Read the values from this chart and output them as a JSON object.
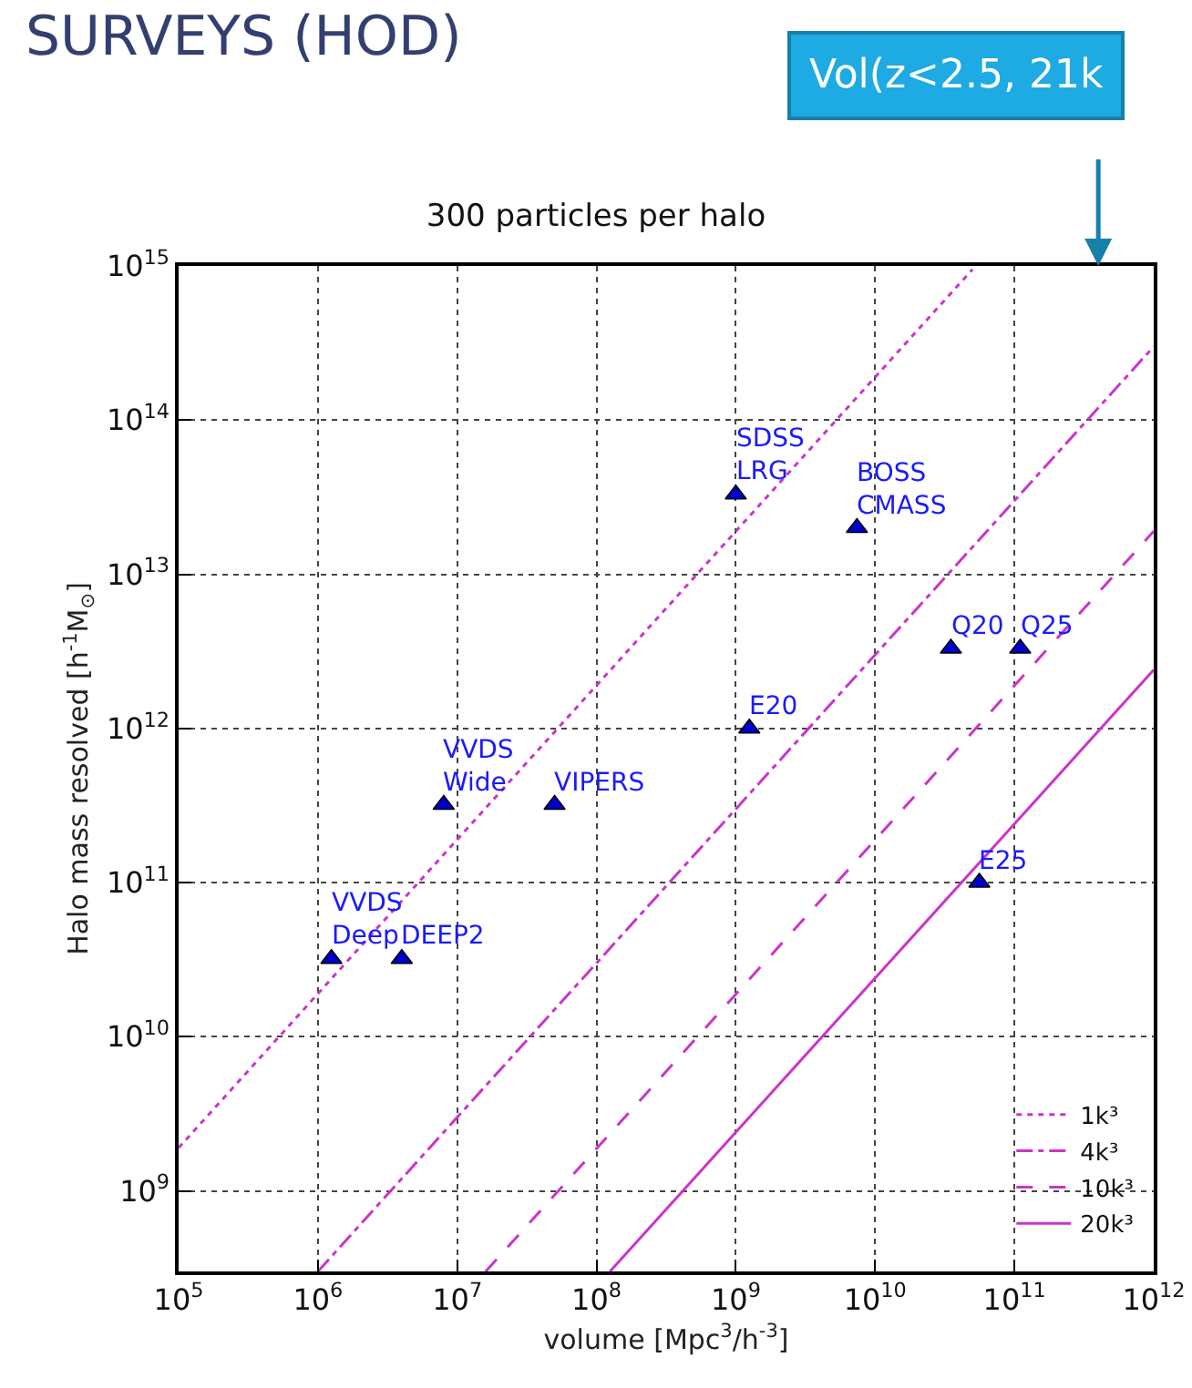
{
  "chart_data": {
    "type": "line",
    "title": "300 particles per halo",
    "xlabel": "volume [Mpc$^{3}$/h$^{-3}$]",
    "ylabel": "Halo mass resolved [h$^{-1}$M$_{⊙}$]",
    "log": "xy",
    "grid": true,
    "legend": "bottom right",
    "xlim": [
      100000,
      1000000000000
    ],
    "ylim": [
      300000000,
      1000000000000000
    ],
    "xticks": [
      {
        "value": 100000,
        "label": "10$^{5}$"
      },
      {
        "value": 1000000,
        "label": "10$^{6}$"
      },
      {
        "value": 10000000,
        "label": "10$^{7}$"
      },
      {
        "value": 100000000,
        "label": "10$^{8}$"
      },
      {
        "value": 1000000000,
        "label": "10$^{9}$"
      },
      {
        "value": 10000000000,
        "label": "10$^{10}$"
      },
      {
        "value": 100000000000,
        "label": "10$^{11}$"
      },
      {
        "value": 1000000000000,
        "label": "10$^{12}$"
      }
    ],
    "yticks": [
      {
        "value": 1000000000,
        "label": "10$^{9}$"
      },
      {
        "value": 10000000000,
        "label": "10$^{10}$"
      },
      {
        "value": 100000000000,
        "label": "10$^{11}$"
      },
      {
        "value": 1000000000000,
        "label": "10$^{12}$"
      },
      {
        "value": 10000000000000,
        "label": "10$^{13}$"
      },
      {
        "value": 100000000000000,
        "label": "10$^{14}$"
      },
      {
        "value": 1000000000000000,
        "label": "10$^{15}$"
      }
    ],
    "series": [
      {
        "name": "1k³",
        "type": "line",
        "line_style": "dotted",
        "color": "#cc33cc",
        "x": [
          100000,
          50000000000
        ],
        "values": [
          1900000000,
          950000000000000
        ]
      },
      {
        "name": "4k³",
        "type": "line",
        "line_style": "dashdot",
        "color": "#cc33cc",
        "x": [
          1000000,
          1000000000000
        ],
        "values": [
          300000000,
          300000000000000
        ]
      },
      {
        "name": "10k³",
        "type": "line",
        "line_style": "dashed",
        "color": "#cc33cc",
        "x": [
          16000000,
          1000000000000
        ],
        "values": [
          300000000,
          19000000000000
        ]
      },
      {
        "name": "20k³",
        "type": "line",
        "line_style": "solid",
        "color": "#cc33cc",
        "x": [
          125000000,
          1000000000000
        ],
        "values": [
          300000000,
          2400000000000
        ]
      },
      {
        "type": "scatter",
        "marker": "triangle",
        "color": "#0000cc",
        "x": [
          1000000000,
          7400000000,
          35000000000,
          110000000000,
          1250000000,
          8000000,
          50000000,
          1250000,
          4000000,
          56000000000
        ],
        "values": [
          33000000000000,
          20000000000000,
          3300000000000,
          3300000000000,
          1000000000000,
          320000000000,
          320000000000,
          32000000000,
          32000000000,
          100000000000
        ]
      }
    ],
    "annotations": [
      {
        "text": "SDSS\nLRG",
        "x": 1000000000,
        "y": 33000000000000
      },
      {
        "text": "BOSS\nCMASS",
        "x": 7400000000,
        "y": 20000000000000
      },
      {
        "text": "Q20",
        "x": 35000000000,
        "y": 3300000000000
      },
      {
        "text": "Q25",
        "x": 110000000000,
        "y": 3300000000000
      },
      {
        "text": "E20",
        "x": 1250000000,
        "y": 1000000000000
      },
      {
        "text": "VVDS\nWide",
        "x": 8000000,
        "y": 320000000000
      },
      {
        "text": "VIPERS",
        "x": 50000000,
        "y": 320000000000
      },
      {
        "text": "VVDS\nDeep",
        "x": 1250000,
        "y": 32000000000
      },
      {
        "text": "DEEP2",
        "x": 4000000,
        "y": 32000000000
      },
      {
        "text": "E25",
        "x": 56000000000,
        "y": 100000000000
      },
      "SURVEYS (HOD)",
      "Vol(z<2.5, 21k"
    ]
  }
}
